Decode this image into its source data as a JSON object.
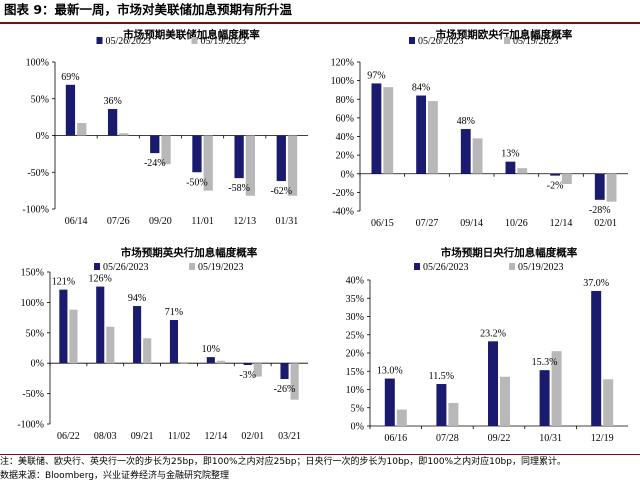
{
  "header": {
    "title": "图表 9：最新一周，市场对美联储加息预期有所升温"
  },
  "footer": {
    "note": "注：美联储、欧央行、英央行一次的步长为25bp，即100%之内对应25bp；日央行一次的步长为10bp，即100%之内对应10bp，同理累计。",
    "source": "数据来源：Bloomberg，兴业证券经济与金融研究院整理"
  },
  "colors": {
    "series1": "#1a1a6e",
    "series2": "#b8b8b8"
  },
  "chart_data": [
    {
      "type": "bar",
      "title": "市场预期美联储加息幅度概率",
      "categories": [
        "06/14",
        "07/26",
        "09/20",
        "11/01",
        "12/13",
        "01/31"
      ],
      "series": [
        {
          "name": "05/26/2023",
          "values": [
            69,
            36,
            -24,
            -50,
            -58,
            -62
          ]
        },
        {
          "name": "05/19/2023",
          "values": [
            17,
            3,
            -39,
            -75,
            -82,
            -82
          ]
        }
      ],
      "data_labels": [
        "69%",
        "36%",
        "-24%",
        "-50%",
        "-58%",
        "-62%"
      ],
      "yticks": [
        100,
        50,
        0,
        -50,
        -100
      ],
      "ytick_labels": [
        "100%",
        "50%",
        "0%",
        "-50%",
        "-100%"
      ],
      "ylim": [
        -100,
        100
      ],
      "legend": "top"
    },
    {
      "type": "bar",
      "title": "市场预期欧央行加息幅度概率",
      "categories": [
        "06/15",
        "07/27",
        "09/14",
        "10/26",
        "12/14",
        "02/01"
      ],
      "series": [
        {
          "name": "05/26/2023",
          "values": [
            97,
            84,
            48,
            13,
            -2,
            -28
          ]
        },
        {
          "name": "05/19/2023",
          "values": [
            93,
            78,
            38,
            6,
            -11,
            -30
          ]
        }
      ],
      "data_labels": [
        "97%",
        "84%",
        "48%",
        "13%",
        "-2%",
        "-28%"
      ],
      "yticks": [
        120,
        100,
        80,
        60,
        40,
        20,
        0,
        -20,
        -40
      ],
      "ytick_labels": [
        "120%",
        "100%",
        "80%",
        "60%",
        "40%",
        "20%",
        "0%",
        "-20%",
        "-40%"
      ],
      "ylim": [
        -40,
        120
      ],
      "legend": "top"
    },
    {
      "type": "bar",
      "title": "市场预期英央行加息幅度概率",
      "categories": [
        "06/22",
        "08/03",
        "09/21",
        "11/02",
        "12/14",
        "02/01",
        "03/21"
      ],
      "series": [
        {
          "name": "05/26/2023",
          "values": [
            121,
            126,
            94,
            71,
            10,
            -3,
            -26
          ]
        },
        {
          "name": "05/19/2023",
          "values": [
            88,
            60,
            41,
            0,
            4,
            -22,
            -60
          ]
        }
      ],
      "data_labels": [
        "121%",
        "126%",
        "94%",
        "71%",
        "10%",
        "-3%",
        "-26%"
      ],
      "yticks": [
        150,
        100,
        50,
        0,
        -50,
        -100
      ],
      "ytick_labels": [
        "150%",
        "100%",
        "50%",
        "0%",
        "-50%",
        "-100%"
      ],
      "ylim": [
        -100,
        150
      ],
      "legend": "top"
    },
    {
      "type": "bar",
      "title": "市场预期日央行加息幅度概率",
      "categories": [
        "06/16",
        "07/28",
        "09/22",
        "10/31",
        "12/19"
      ],
      "series": [
        {
          "name": "05/26/2023",
          "values": [
            13.0,
            11.5,
            23.2,
            15.3,
            37.0
          ]
        },
        {
          "name": "05/19/2023",
          "values": [
            4.5,
            6.3,
            13.5,
            20.5,
            12.8
          ]
        }
      ],
      "data_labels": [
        "13.0%",
        "11.5%",
        "23.2%",
        "15.3%",
        "37.0%"
      ],
      "yticks": [
        40,
        35,
        30,
        25,
        20,
        15,
        10,
        5,
        0
      ],
      "ytick_labels": [
        "40%",
        "35%",
        "30%",
        "25%",
        "20%",
        "15%",
        "10%",
        "5%",
        "0%"
      ],
      "ylim": [
        0,
        40
      ],
      "legend": "top"
    }
  ]
}
